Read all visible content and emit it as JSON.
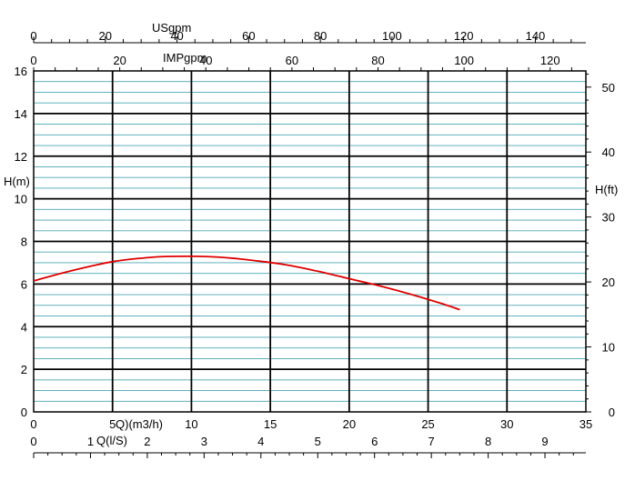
{
  "chart_data": {
    "type": "line",
    "x_primary": {
      "label": "Q)(m3/h)",
      "range": [
        0,
        35
      ],
      "ticks": [
        "0",
        "5",
        "10",
        "15",
        "20",
        "25",
        "30",
        "35"
      ]
    },
    "x_ls": {
      "label": "Q(l/S)",
      "range": [
        0,
        9.72
      ],
      "ticks": [
        "0",
        "1",
        "2",
        "3",
        "4",
        "5",
        "6",
        "7",
        "8",
        "9"
      ]
    },
    "x_usgpm": {
      "label": "USgpm",
      "range": [
        0,
        154.1
      ],
      "ticks": [
        "0",
        "20",
        "40",
        "60",
        "80",
        "100",
        "120",
        "140"
      ]
    },
    "x_impgpm": {
      "label": "IMPgpm",
      "range": [
        0,
        128.3
      ],
      "ticks": [
        "0",
        "20",
        "40",
        "60",
        "80",
        "100",
        "120"
      ]
    },
    "y_primary": {
      "label": "H(m)",
      "range": [
        0,
        16
      ],
      "ticks": [
        "0",
        "2",
        "4",
        "6",
        "8",
        "10",
        "12",
        "14",
        "16"
      ]
    },
    "y_ft": {
      "label": "H(ft)",
      "range": [
        0,
        52.49
      ],
      "ticks": [
        "0",
        "10",
        "20",
        "30",
        "40",
        "50"
      ]
    },
    "grid": true,
    "series": [
      {
        "color": "#dd0000",
        "x": [
          0,
          2,
          4,
          5,
          6,
          8,
          10,
          12,
          14,
          16,
          18,
          20,
          22,
          24,
          26,
          27
        ],
        "y": [
          6.15,
          6.55,
          6.9,
          7.05,
          7.15,
          7.28,
          7.3,
          7.25,
          7.1,
          6.9,
          6.6,
          6.25,
          5.9,
          5.5,
          5.05,
          4.8
        ]
      }
    ]
  }
}
